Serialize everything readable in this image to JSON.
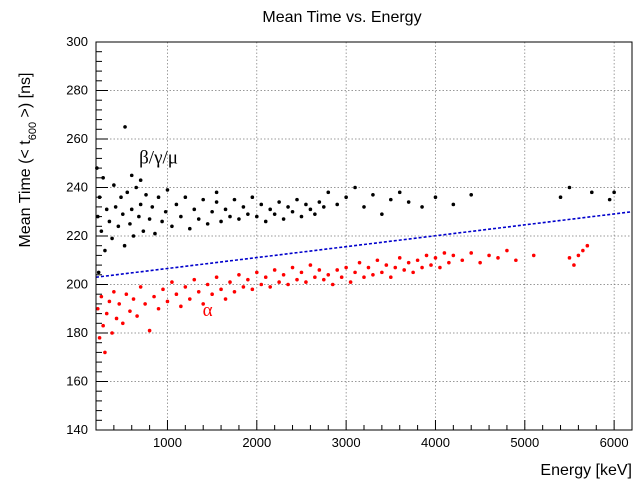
{
  "chart_data": {
    "type": "scatter",
    "title": "Mean Time vs. Energy",
    "xlabel": "Energy [keV]",
    "ylabel": {
      "main": "Mean Time (< t",
      "sub": "600",
      "end": " >) [ns]"
    },
    "xlim": [
      200,
      6200
    ],
    "ylim": [
      140,
      300
    ],
    "x_ticks": [
      1000,
      2000,
      3000,
      4000,
      5000,
      6000
    ],
    "y_ticks": [
      140,
      160,
      180,
      200,
      220,
      240,
      260,
      280,
      300
    ],
    "grid": true,
    "colors": {
      "beta": "#000000",
      "alpha": "#ff0000",
      "cut": "#0000cc"
    },
    "annotations": [
      {
        "text": "β/γ/μ",
        "x": 900,
        "y": 250,
        "color": "#000000"
      },
      {
        "text": "α",
        "x": 1450,
        "y": 187,
        "color": "#ff0000"
      }
    ],
    "series": [
      {
        "name": "β/γ/μ",
        "color": "#000000",
        "points": [
          [
            220,
            228
          ],
          [
            240,
            236
          ],
          [
            260,
            222
          ],
          [
            280,
            244
          ],
          [
            300,
            214
          ],
          [
            320,
            231
          ],
          [
            350,
            226
          ],
          [
            380,
            219
          ],
          [
            400,
            241
          ],
          [
            420,
            232
          ],
          [
            450,
            224
          ],
          [
            480,
            236
          ],
          [
            500,
            229
          ],
          [
            520,
            216
          ],
          [
            550,
            238
          ],
          [
            580,
            225
          ],
          [
            600,
            231
          ],
          [
            620,
            220
          ],
          [
            650,
            240
          ],
          [
            680,
            228
          ],
          [
            700,
            233
          ],
          [
            730,
            222
          ],
          [
            760,
            237
          ],
          [
            800,
            227
          ],
          [
            830,
            232
          ],
          [
            860,
            221
          ],
          [
            900,
            236
          ],
          [
            940,
            226
          ],
          [
            980,
            230
          ],
          [
            1000,
            239
          ],
          [
            1050,
            224
          ],
          [
            1100,
            233
          ],
          [
            1150,
            228
          ],
          [
            1200,
            236
          ],
          [
            1250,
            223
          ],
          [
            1300,
            231
          ],
          [
            1350,
            227
          ],
          [
            1400,
            235
          ],
          [
            1450,
            225
          ],
          [
            1500,
            230
          ],
          [
            1550,
            234
          ],
          [
            1600,
            226
          ],
          [
            1650,
            231
          ],
          [
            1700,
            228
          ],
          [
            1750,
            235
          ],
          [
            1800,
            227
          ],
          [
            1850,
            232
          ],
          [
            1900,
            229
          ],
          [
            1950,
            236
          ],
          [
            2000,
            228
          ],
          [
            2050,
            233
          ],
          [
            2100,
            226
          ],
          [
            2150,
            231
          ],
          [
            2200,
            229
          ],
          [
            2250,
            234
          ],
          [
            2300,
            227
          ],
          [
            2350,
            232
          ],
          [
            2400,
            230
          ],
          [
            2450,
            235
          ],
          [
            2500,
            228
          ],
          [
            2550,
            233
          ],
          [
            2600,
            231
          ],
          [
            2650,
            229
          ],
          [
            2700,
            234
          ],
          [
            2750,
            232
          ],
          [
            2800,
            238
          ],
          [
            2900,
            233
          ],
          [
            3000,
            236
          ],
          [
            3100,
            240
          ],
          [
            3200,
            232
          ],
          [
            3300,
            237
          ],
          [
            3400,
            229
          ],
          [
            3500,
            235
          ],
          [
            3600,
            238
          ],
          [
            3700,
            234
          ],
          [
            3850,
            232
          ],
          [
            4000,
            236
          ],
          [
            4200,
            233
          ],
          [
            4400,
            237
          ],
          [
            5400,
            236
          ],
          [
            5500,
            240
          ],
          [
            5750,
            238
          ],
          [
            5950,
            235
          ],
          [
            6000,
            238
          ],
          [
            525,
            265
          ],
          [
            1550,
            238
          ],
          [
            210,
            248
          ],
          [
            230,
            205
          ],
          [
            600,
            245
          ],
          [
            700,
            243
          ]
        ]
      },
      {
        "name": "α",
        "color": "#ff0000",
        "points": [
          [
            220,
            190
          ],
          [
            240,
            178
          ],
          [
            260,
            195
          ],
          [
            280,
            183
          ],
          [
            300,
            172
          ],
          [
            320,
            188
          ],
          [
            350,
            193
          ],
          [
            380,
            180
          ],
          [
            400,
            197
          ],
          [
            430,
            186
          ],
          [
            460,
            192
          ],
          [
            500,
            184
          ],
          [
            540,
            196
          ],
          [
            580,
            189
          ],
          [
            620,
            194
          ],
          [
            660,
            187
          ],
          [
            700,
            199
          ],
          [
            750,
            192
          ],
          [
            800,
            181
          ],
          [
            850,
            195
          ],
          [
            900,
            190
          ],
          [
            950,
            198
          ],
          [
            1000,
            193
          ],
          [
            1050,
            201
          ],
          [
            1100,
            196
          ],
          [
            1150,
            191
          ],
          [
            1200,
            199
          ],
          [
            1250,
            194
          ],
          [
            1300,
            202
          ],
          [
            1350,
            197
          ],
          [
            1400,
            192
          ],
          [
            1450,
            200
          ],
          [
            1500,
            196
          ],
          [
            1550,
            203
          ],
          [
            1600,
            198
          ],
          [
            1650,
            194
          ],
          [
            1700,
            201
          ],
          [
            1750,
            197
          ],
          [
            1800,
            204
          ],
          [
            1850,
            199
          ],
          [
            1900,
            202
          ],
          [
            1950,
            198
          ],
          [
            2000,
            205
          ],
          [
            2050,
            200
          ],
          [
            2100,
            203
          ],
          [
            2150,
            199
          ],
          [
            2200,
            206
          ],
          [
            2250,
            201
          ],
          [
            2300,
            204
          ],
          [
            2350,
            200
          ],
          [
            2400,
            207
          ],
          [
            2450,
            202
          ],
          [
            2500,
            205
          ],
          [
            2550,
            201
          ],
          [
            2600,
            208
          ],
          [
            2650,
            203
          ],
          [
            2700,
            206
          ],
          [
            2750,
            202
          ],
          [
            2800,
            204
          ],
          [
            2850,
            200
          ],
          [
            2900,
            206
          ],
          [
            2950,
            203
          ],
          [
            3000,
            207
          ],
          [
            3050,
            201
          ],
          [
            3100,
            205
          ],
          [
            3150,
            209
          ],
          [
            3200,
            203
          ],
          [
            3250,
            207
          ],
          [
            3300,
            204
          ],
          [
            3350,
            210
          ],
          [
            3400,
            205
          ],
          [
            3450,
            208
          ],
          [
            3500,
            203
          ],
          [
            3550,
            207
          ],
          [
            3600,
            211
          ],
          [
            3650,
            206
          ],
          [
            3700,
            209
          ],
          [
            3750,
            205
          ],
          [
            3800,
            210
          ],
          [
            3850,
            207
          ],
          [
            3900,
            212
          ],
          [
            3950,
            208
          ],
          [
            4000,
            211
          ],
          [
            4050,
            207
          ],
          [
            4100,
            213
          ],
          [
            4150,
            209
          ],
          [
            4200,
            212
          ],
          [
            4300,
            210
          ],
          [
            4400,
            213
          ],
          [
            4500,
            209
          ],
          [
            4600,
            212
          ],
          [
            4700,
            211
          ],
          [
            4800,
            214
          ],
          [
            4900,
            210
          ],
          [
            5100,
            212
          ],
          [
            5500,
            211
          ],
          [
            5550,
            208
          ],
          [
            5650,
            214
          ],
          [
            5700,
            216
          ],
          [
            5600,
            212
          ]
        ]
      }
    ],
    "cut_line": {
      "style": "dashed",
      "color": "#0000cc",
      "points": [
        [
          200,
          203
        ],
        [
          6200,
          230
        ]
      ]
    }
  }
}
